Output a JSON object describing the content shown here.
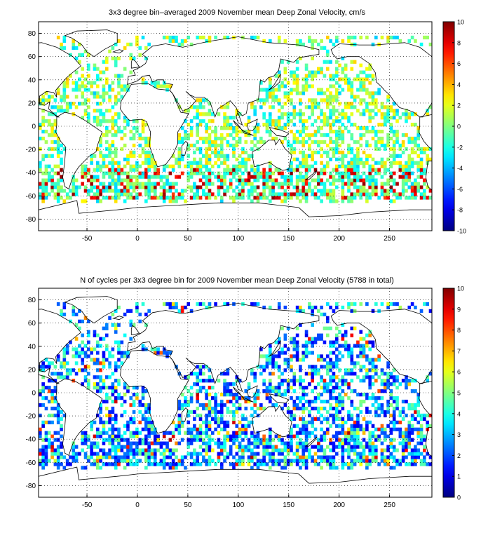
{
  "chart_data": [
    {
      "type": "heatmap",
      "title": "3x3 degree bin–averaged 2009 November mean Deep Zonal Velocity, cm/s",
      "xlabel": "",
      "ylabel": "",
      "xlim": [
        -98,
        292
      ],
      "ylim": [
        -90,
        90
      ],
      "xticks": [
        -50,
        0,
        50,
        100,
        150,
        200,
        250
      ],
      "yticks": [
        -80,
        -60,
        -40,
        -20,
        0,
        20,
        40,
        60,
        80
      ],
      "grid": true,
      "bin_size_deg": 3,
      "colorbar": {
        "min": -10,
        "max": 10,
        "ticks": [
          -10,
          -8,
          -6,
          -4,
          -2,
          0,
          2,
          4,
          6,
          8,
          10
        ],
        "colormap": "jet",
        "units": "cm/s"
      }
    },
    {
      "type": "heatmap",
      "title": "N of cycles per 3x3 degree bin for 2009 November mean Deep Zonal Velocity (5788 in total)",
      "xlabel": "",
      "ylabel": "",
      "xlim": [
        -98,
        292
      ],
      "ylim": [
        -90,
        90
      ],
      "xticks": [
        -50,
        0,
        50,
        100,
        150,
        200,
        250
      ],
      "yticks": [
        -80,
        -60,
        -40,
        -20,
        0,
        20,
        40,
        60,
        80
      ],
      "grid": true,
      "bin_size_deg": 3,
      "colorbar": {
        "min": 0,
        "max": 10,
        "ticks": [
          0,
          1,
          2,
          3,
          4,
          5,
          6,
          7,
          8,
          9,
          10
        ],
        "colormap": "jet",
        "units": ""
      }
    }
  ]
}
